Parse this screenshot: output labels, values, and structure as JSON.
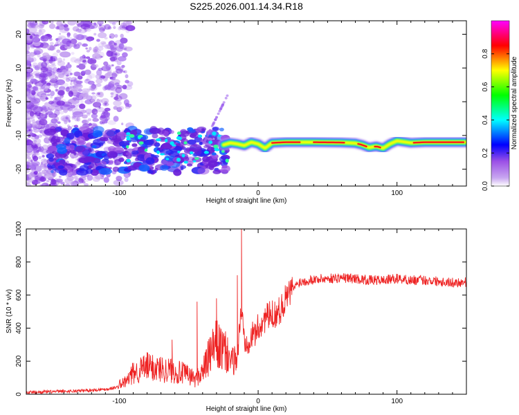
{
  "title": "S225.2026.001.14.34.R18",
  "chart_data": [
    {
      "type": "heatmap",
      "title": "S225.2026.001.14.34.R18",
      "xlabel": "Height of straight line (km)",
      "ylabel": "Frequency (Hz)",
      "xlim": [
        -167,
        150
      ],
      "ylim": [
        -25,
        24
      ],
      "xticks": [
        -100,
        0,
        100
      ],
      "yticks": [
        20,
        10,
        0,
        -10,
        -20
      ],
      "colorbar": {
        "label": "Normalized spectral amplitude",
        "range": [
          0,
          1
        ],
        "ticks": [
          0.0,
          0.2,
          0.4,
          0.6,
          0.8
        ],
        "tick_labels": [
          "0.0",
          "0.2",
          "0.4",
          "0.6",
          "0.8"
        ],
        "colormap": [
          "#ffffff",
          "#9b50e6",
          "#0000ff",
          "#00ffff",
          "#00ff00",
          "#ffff00",
          "#ff0000",
          "#ff00ff"
        ]
      },
      "signal_track": {
        "x": [
          -25,
          -20,
          -15,
          -10,
          -5,
          0,
          5,
          10,
          20,
          40,
          60,
          70,
          75,
          80,
          85,
          90,
          95,
          100,
          110,
          120,
          130,
          140,
          150
        ],
        "frequency": [
          -12.8,
          -12.2,
          -12.5,
          -13,
          -12,
          -12.5,
          -13.8,
          -12.2,
          -12,
          -12,
          -12.1,
          -12.3,
          -12.8,
          -13.6,
          -13.2,
          -13.8,
          -12.5,
          -11.6,
          -12.2,
          -12,
          -12,
          -12,
          -12
        ]
      }
    },
    {
      "type": "line",
      "xlabel": "Height of straight line (km)",
      "ylabel": "SNR (10 * v/v)",
      "xlim": [
        -167,
        150
      ],
      "ylim": [
        0,
        1000
      ],
      "xticks": [
        -100,
        0,
        100
      ],
      "yticks": [
        0,
        200,
        400,
        600,
        800,
        1000
      ],
      "series": [
        {
          "name": "SNR",
          "color": "#ee2222",
          "x": [
            -167,
            -150,
            -130,
            -110,
            -100,
            -95,
            -90,
            -80,
            -70,
            -60,
            -50,
            -45,
            -40,
            -35,
            -30,
            -25,
            -20,
            -15,
            -12,
            -10,
            -5,
            0,
            5,
            10,
            15,
            20,
            25,
            30,
            40,
            50,
            60,
            70,
            80,
            90,
            100,
            110,
            120,
            130,
            140,
            150
          ],
          "values": [
            12,
            15,
            20,
            30,
            45,
            60,
            100,
            130,
            120,
            110,
            90,
            70,
            110,
            180,
            240,
            200,
            180,
            230,
            520,
            330,
            340,
            400,
            460,
            480,
            500,
            580,
            640,
            680,
            695,
            700,
            705,
            700,
            690,
            690,
            700,
            690,
            690,
            685,
            675,
            680
          ]
        }
      ],
      "spikes": [
        {
          "x": -84,
          "y": 210
        },
        {
          "x": -62,
          "y": 330
        },
        {
          "x": -44,
          "y": 560
        },
        {
          "x": -30,
          "y": 580
        },
        {
          "x": -12,
          "y": 1000
        },
        {
          "x": -15,
          "y": 720
        },
        {
          "x": 5,
          "y": 520
        }
      ]
    }
  ]
}
